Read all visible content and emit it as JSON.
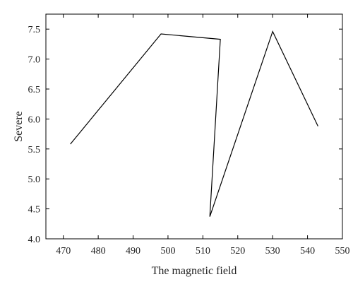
{
  "chart_data": {
    "type": "line",
    "title": "",
    "xlabel": "The magnetic field",
    "ylabel": "Severe",
    "xlim": [
      465,
      550
    ],
    "ylim": [
      4.0,
      7.75
    ],
    "x_ticks": [
      470,
      480,
      490,
      500,
      510,
      520,
      530,
      540,
      550
    ],
    "x_tick_labels": [
      "470",
      "480",
      "490",
      "500",
      "510",
      "520",
      "530",
      "540",
      "550"
    ],
    "y_ticks": [
      4.0,
      4.5,
      5.0,
      5.5,
      6.0,
      6.5,
      7.0,
      7.5
    ],
    "y_tick_labels": [
      "4.0",
      "4.5",
      "5.0",
      "5.5",
      "6.0",
      "6.5",
      "7.0",
      "7.5"
    ],
    "grid": false,
    "legend": "none",
    "series": [
      {
        "x": [
          472,
          498,
          515,
          512,
          530,
          543
        ],
        "values": [
          5.58,
          7.42,
          7.33,
          4.37,
          7.46,
          5.88
        ],
        "color": "#000000"
      }
    ]
  }
}
